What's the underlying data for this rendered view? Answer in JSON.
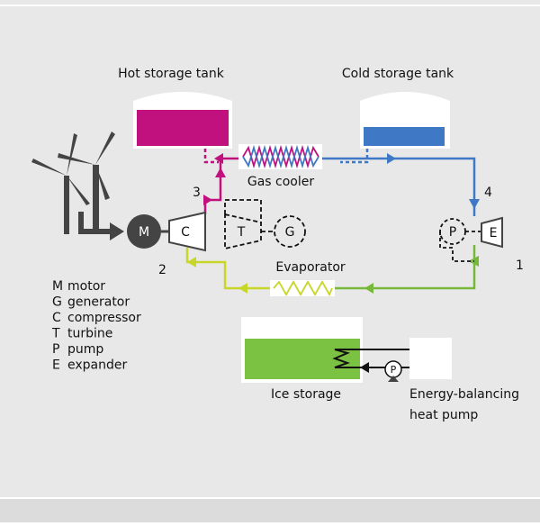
{
  "tanks": {
    "hot": "Hot storage tank",
    "cold": "Cold storage tank"
  },
  "components": {
    "gas_cooler": "Gas cooler",
    "evaporator": "Evaporator",
    "ice_storage": "Ice storage",
    "heat_pump": [
      "Energy-balancing",
      "heat pump"
    ]
  },
  "symbols": {
    "motor": "M",
    "compressor": "C",
    "turbine": "T",
    "generator": "G",
    "pump": "P",
    "expander": "E",
    "ice_pump": "P"
  },
  "states": [
    "1",
    "2",
    "3",
    "4"
  ],
  "legend": [
    {
      "symbol": "M",
      "name": "motor"
    },
    {
      "symbol": "G",
      "name": "generator"
    },
    {
      "symbol": "C",
      "name": "compressor"
    },
    {
      "symbol": "T",
      "name": "turbine"
    },
    {
      "symbol": "P",
      "name": "pump"
    },
    {
      "symbol": "E",
      "name": "expander"
    }
  ]
}
